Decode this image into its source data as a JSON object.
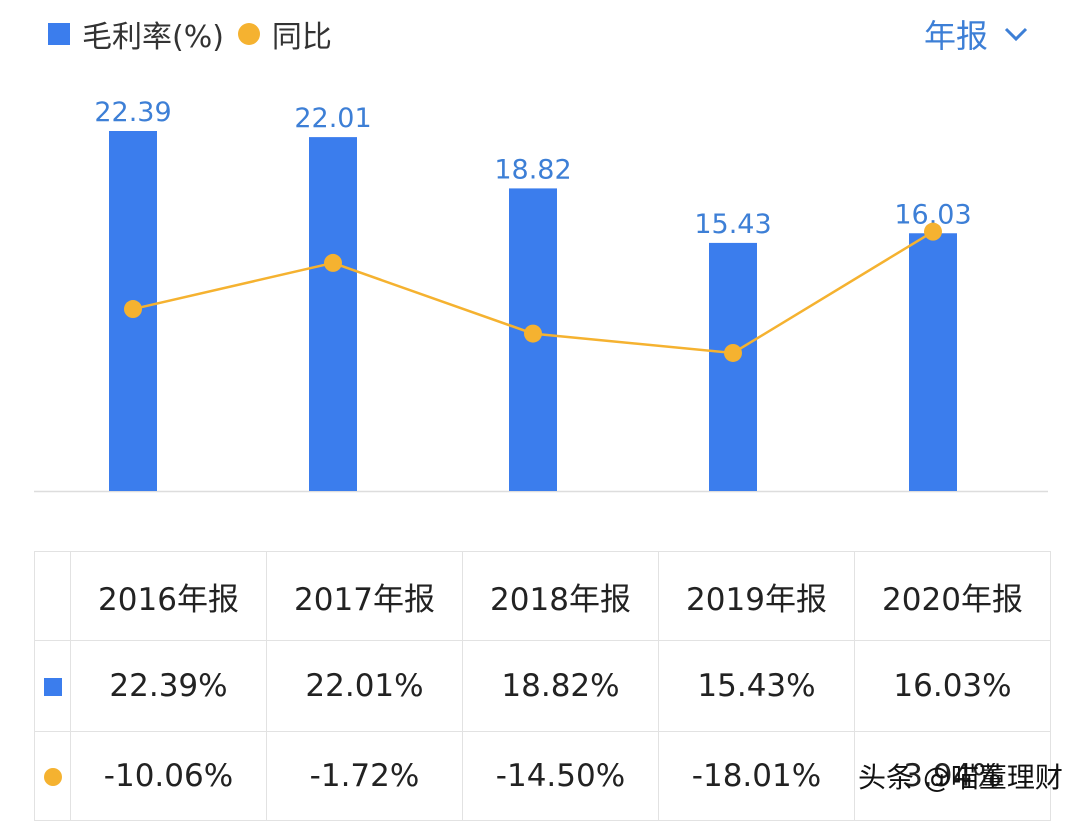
{
  "header": {
    "legend": [
      {
        "label": "毛利率(%)",
        "marker": "square",
        "color": "#3b7ded"
      },
      {
        "label": "同比",
        "marker": "circle",
        "color": "#f5b230"
      }
    ],
    "period_selector": "年报"
  },
  "chart_data": {
    "type": "bar",
    "categories": [
      "2016年报",
      "2017年报",
      "2018年报",
      "2019年报",
      "2020年报"
    ],
    "series": [
      {
        "name": "毛利率(%)",
        "type": "bar",
        "values": [
          22.39,
          22.01,
          18.82,
          15.43,
          16.03
        ],
        "color": "#3b7ded"
      },
      {
        "name": "同比",
        "type": "line",
        "values": [
          -10.06,
          -1.72,
          -14.5,
          -18.01,
          3.94
        ],
        "color": "#f5b230"
      }
    ],
    "bar_labels": [
      "22.39",
      "22.01",
      "18.82",
      "15.43",
      "16.03"
    ],
    "ylim_bar": [
      0,
      22.39
    ],
    "ylim_line": [
      -28.14,
      12.92
    ],
    "grid": false
  },
  "table": {
    "headers": [
      "2016年报",
      "2017年报",
      "2018年报",
      "2019年报",
      "2020年报"
    ],
    "rows": [
      {
        "marker": "square",
        "color": "#3b7ded",
        "values": [
          "22.39%",
          "22.01%",
          "18.82%",
          "15.43%",
          "16.03%"
        ]
      },
      {
        "marker": "circle",
        "color": "#f5b230",
        "values": [
          "-10.06%",
          "-1.72%",
          "-14.50%",
          "-18.01%",
          "3.94%"
        ]
      }
    ]
  },
  "watermark": "头条 @喵董理财"
}
